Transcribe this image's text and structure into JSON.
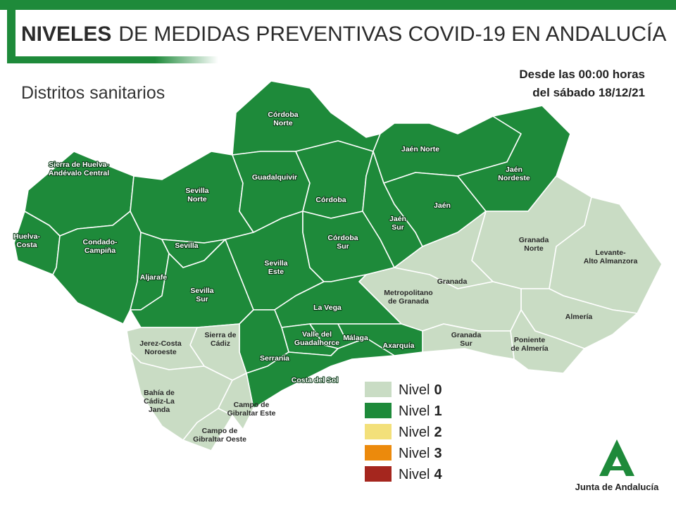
{
  "header": {
    "title_bold": "NIVELES",
    "title_rest": "DE MEDIDAS PREVENTIVAS COVID-19 EN ANDALUCÍA",
    "subtitle": "Distritos sanitarios",
    "date_line1": "Desde las 00:00 horas",
    "date_line2": "del sábado 18/12/21"
  },
  "districts": [
    {
      "label": [
        "Huelva-",
        "Costa"
      ],
      "level": 1
    },
    {
      "label": [
        "Sierra de Huelva-",
        "Andévalo Central"
      ],
      "level": 1
    },
    {
      "label": [
        "Condado-",
        "Campiña"
      ],
      "level": 1
    },
    {
      "label": [
        "Sevilla",
        "Norte"
      ],
      "level": 1
    },
    {
      "label": [
        "Aljarafe"
      ],
      "level": 1
    },
    {
      "label": [
        "Sevilla"
      ],
      "level": 1
    },
    {
      "label": [
        "Sevilla",
        "Sur"
      ],
      "level": 1
    },
    {
      "label": [
        "Córdoba",
        "Norte"
      ],
      "level": 1
    },
    {
      "label": [
        "Guadalquivir"
      ],
      "level": 1
    },
    {
      "label": [
        "Córdoba"
      ],
      "level": 1
    },
    {
      "label": [
        "Sevilla",
        "Este"
      ],
      "level": 1
    },
    {
      "label": [
        "Córdoba",
        "Sur"
      ],
      "level": 1
    },
    {
      "label": [
        "Jaén",
        "Sur"
      ],
      "level": 1
    },
    {
      "label": [
        "Jaén Norte"
      ],
      "level": 1
    },
    {
      "label": [
        "Jaén"
      ],
      "level": 1
    },
    {
      "label": [
        "Jaén",
        "Nordeste"
      ],
      "level": 1
    },
    {
      "label": [
        "Granada",
        "Norte"
      ],
      "level": 0
    },
    {
      "label": [
        "Levante-",
        "Alto Almanzora"
      ],
      "level": 0
    },
    {
      "label": [
        "Almería"
      ],
      "level": 0
    },
    {
      "label": [
        "Poniente",
        "de Almería"
      ],
      "level": 0
    },
    {
      "label": [
        "Granada"
      ],
      "level": 0
    },
    {
      "label": [
        "Metropolitano",
        "de Granada"
      ],
      "level": 0
    },
    {
      "label": [
        "Granada",
        "Sur"
      ],
      "level": 0
    },
    {
      "label": [
        "La Vega"
      ],
      "level": 1
    },
    {
      "label": [
        "Axarquía"
      ],
      "level": 1
    },
    {
      "label": [
        "Málaga"
      ],
      "level": 1
    },
    {
      "label": [
        "Valle del",
        "Guadalhorce"
      ],
      "level": 1
    },
    {
      "label": [
        "Serranía"
      ],
      "level": 1
    },
    {
      "label": [
        "Costa del Sol"
      ],
      "level": 1
    },
    {
      "label": [
        "Sierra de",
        "Cádiz"
      ],
      "level": 0
    },
    {
      "label": [
        "Jerez-Costa",
        "Noroeste"
      ],
      "level": 0
    },
    {
      "label": [
        "Bahía de",
        "Cádiz-La",
        "Janda"
      ],
      "level": 0
    },
    {
      "label": [
        "Campo de",
        "Gibraltar Este"
      ],
      "level": 0
    },
    {
      "label": [
        "Campo de",
        "Gibraltar Oeste"
      ],
      "level": 0
    }
  ],
  "legend": [
    {
      "text": "Nivel",
      "level": 0,
      "color": "#c9dcc4"
    },
    {
      "text": "Nivel",
      "level": 1,
      "color": "#1e8a3a"
    },
    {
      "text": "Nivel",
      "level": 2,
      "color": "#f3e07a"
    },
    {
      "text": "Nivel",
      "level": 3,
      "color": "#ec8a0c"
    },
    {
      "text": "Nivel",
      "level": 4,
      "color": "#a5261e"
    }
  ],
  "logo": {
    "text": "Junta de Andalucía"
  }
}
